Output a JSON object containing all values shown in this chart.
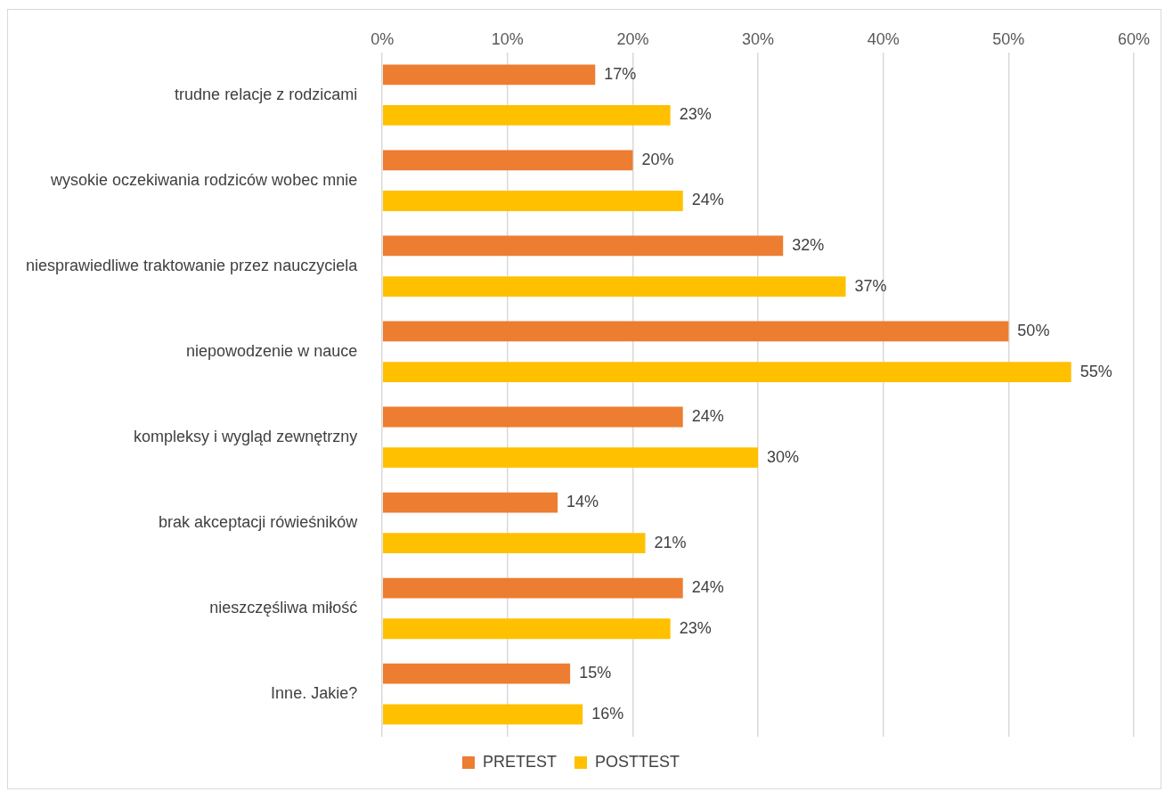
{
  "chart_data": {
    "type": "bar",
    "orientation": "horizontal",
    "categories": [
      "trudne relacje z rodzicami",
      "wysokie oczekiwania rodziców wobec mnie",
      "niesprawiedliwe traktowanie przez nauczyciela",
      "niepowodzenie w nauce",
      "kompleksy i wygląd zewnętrzny",
      "brak akceptacji rówieśników",
      "nieszczęśliwa miłość",
      "Inne. Jakie?"
    ],
    "series": [
      {
        "name": "PRETEST",
        "color": "#ed7d31",
        "values": [
          17,
          20,
          32,
          50,
          24,
          14,
          24,
          15
        ]
      },
      {
        "name": "POSTTEST",
        "color": "#ffc000",
        "values": [
          23,
          24,
          37,
          55,
          30,
          21,
          23,
          16
        ]
      }
    ],
    "value_labels": [
      [
        "17%",
        "20%",
        "32%",
        "50%",
        "24%",
        "14%",
        "24%",
        "15%"
      ],
      [
        "23%",
        "24%",
        "37%",
        "55%",
        "30%",
        "21%",
        "23%",
        "16%"
      ]
    ],
    "xlim": [
      0,
      60
    ],
    "xticks": [
      {
        "value": 0,
        "label": "0%"
      },
      {
        "value": 10,
        "label": "10%"
      },
      {
        "value": 20,
        "label": "20%"
      },
      {
        "value": 30,
        "label": "30%"
      },
      {
        "value": 40,
        "label": "40%"
      },
      {
        "value": 50,
        "label": "50%"
      },
      {
        "value": 60,
        "label": "60%"
      }
    ],
    "grid": "x",
    "legend": "bottom"
  }
}
